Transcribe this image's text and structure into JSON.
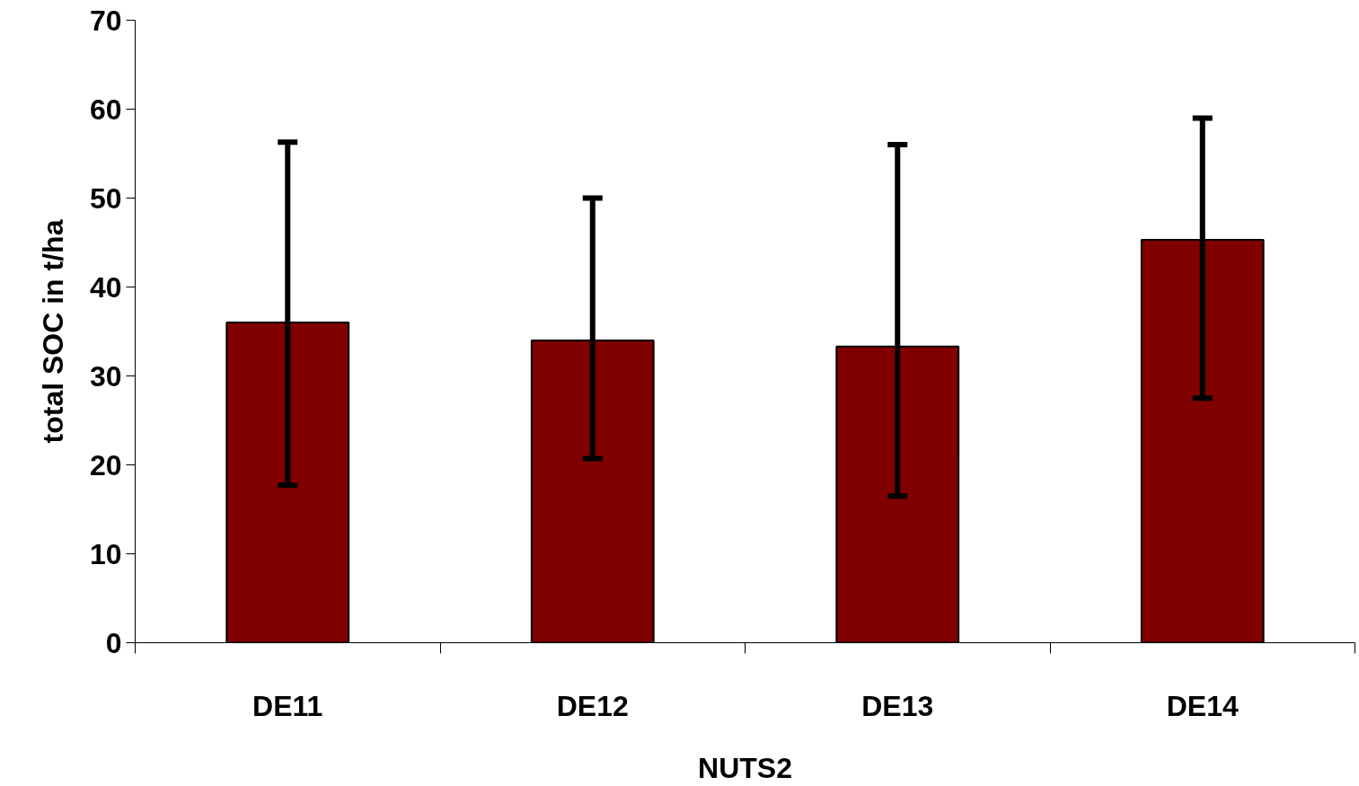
{
  "chart_data": {
    "type": "bar",
    "xlabel": "NUTS2",
    "ylabel": "total SOC in t/ha",
    "categories": [
      "DE11",
      "DE12",
      "DE13",
      "DE14"
    ],
    "values": [
      36.0,
      34.0,
      33.3,
      45.3
    ],
    "errors": [
      [
        17.7,
        56.3
      ],
      [
        20.7,
        50.0
      ],
      [
        16.5,
        56.0
      ],
      [
        27.5,
        59.0
      ]
    ],
    "color": "#800000",
    "ylim": [
      0,
      70
    ],
    "yticks": [
      0,
      10,
      20,
      30,
      40,
      50,
      60,
      70
    ],
    "grid": false
  }
}
